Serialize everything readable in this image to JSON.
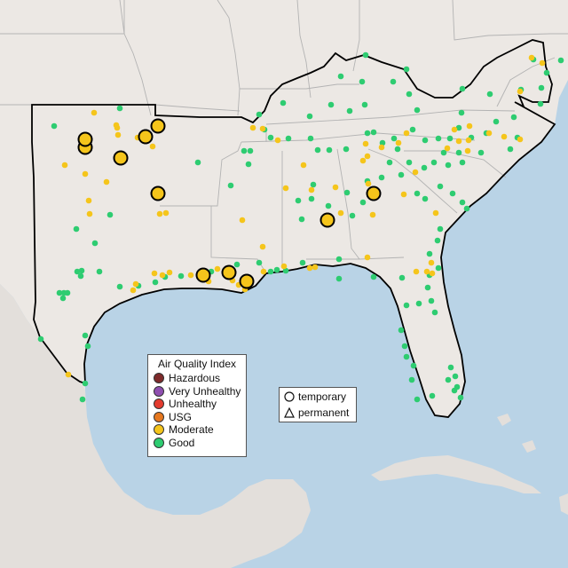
{
  "legend": {
    "title": "Air Quality Index",
    "categories": [
      {
        "label": "Hazardous",
        "color": "#7e2a2a"
      },
      {
        "label": "Very Unhealthy",
        "color": "#8f4fb0"
      },
      {
        "label": "Unhealthy",
        "color": "#e33b2e"
      },
      {
        "label": "USG",
        "color": "#e6781f"
      },
      {
        "label": "Moderate",
        "color": "#f5c51b"
      },
      {
        "label": "Good",
        "color": "#2ecc71"
      }
    ]
  },
  "monitor_types": {
    "temporary": "temporary",
    "permanent": "permanent",
    "temporary_icon": "circle-icon",
    "permanent_icon": "triangle-icon"
  },
  "colors": {
    "land": "#ece8e4",
    "water": "#b9d3e6",
    "good": "#2ecc71",
    "moderate": "#f5c51b",
    "region_border": "#000000"
  }
}
